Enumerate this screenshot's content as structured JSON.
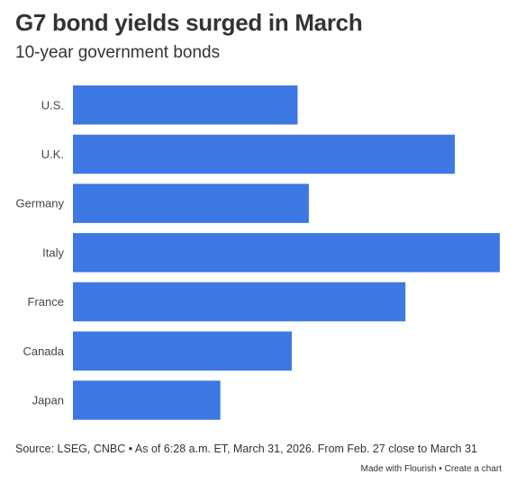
{
  "header": {
    "title": "G7 bond yields surged in March",
    "subtitle": "10-year government bonds"
  },
  "footer": {
    "source": "Source: LSEG, CNBC • As of 6:28 a.m. ET, March 31, 2026. From Feb. 27 close to March 31",
    "made_with": "Made with Flourish",
    "separator": "•",
    "create_chart": "Create a chart"
  },
  "colors": {
    "bar": "#3d78e3",
    "label": "#444444"
  },
  "chart_data": {
    "type": "bar",
    "orientation": "horizontal",
    "categories": [
      "U.S.",
      "U.K.",
      "Germany",
      "Italy",
      "France",
      "Canada",
      "Japan"
    ],
    "values": [
      0.5,
      0.85,
      0.525,
      0.95,
      0.74,
      0.487,
      0.328
    ],
    "xlim": [
      0,
      0.95
    ],
    "grid": false,
    "legend": "none"
  }
}
